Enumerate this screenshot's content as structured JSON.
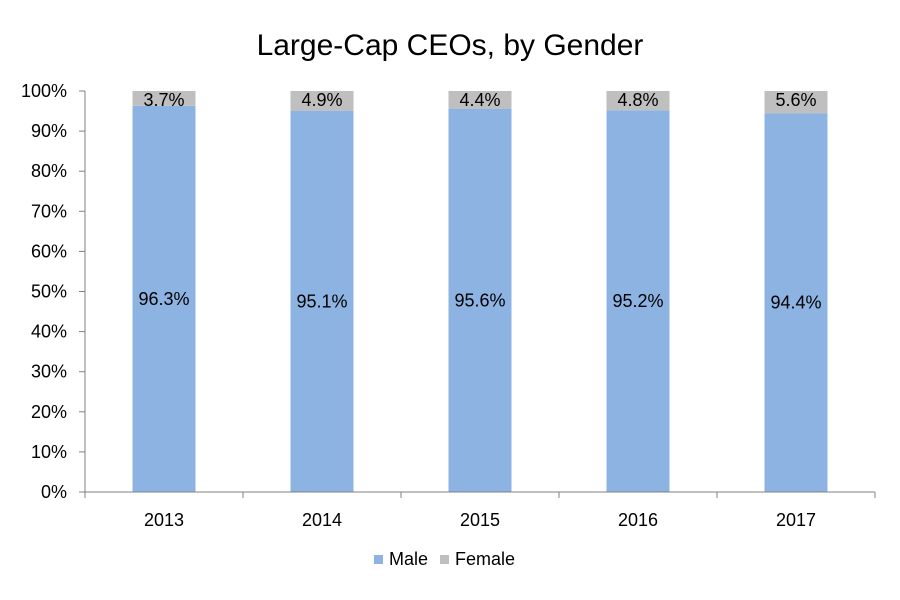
{
  "chart_data": {
    "type": "bar",
    "stacked": true,
    "title": "Large-Cap CEOs, by Gender",
    "xlabel": "",
    "ylabel": "",
    "categories": [
      "2013",
      "2014",
      "2015",
      "2016",
      "2017"
    ],
    "ylim": [
      0,
      100
    ],
    "y_ticks": [
      "0%",
      "10%",
      "20%",
      "30%",
      "40%",
      "50%",
      "60%",
      "70%",
      "80%",
      "90%",
      "100%"
    ],
    "series": [
      {
        "name": "Male",
        "color": "#8DB3E2",
        "values": [
          96.3,
          95.1,
          95.6,
          95.2,
          94.4
        ],
        "labels": [
          "96.3%",
          "95.1%",
          "95.6%",
          "95.2%",
          "94.4%"
        ]
      },
      {
        "name": "Female",
        "color": "#BFBFBF",
        "values": [
          3.7,
          4.9,
          4.4,
          4.8,
          5.6
        ],
        "labels": [
          "3.7%",
          "4.9%",
          "4.4%",
          "4.8%",
          "5.6%"
        ]
      }
    ],
    "grid": false,
    "legend_position": "bottom"
  }
}
